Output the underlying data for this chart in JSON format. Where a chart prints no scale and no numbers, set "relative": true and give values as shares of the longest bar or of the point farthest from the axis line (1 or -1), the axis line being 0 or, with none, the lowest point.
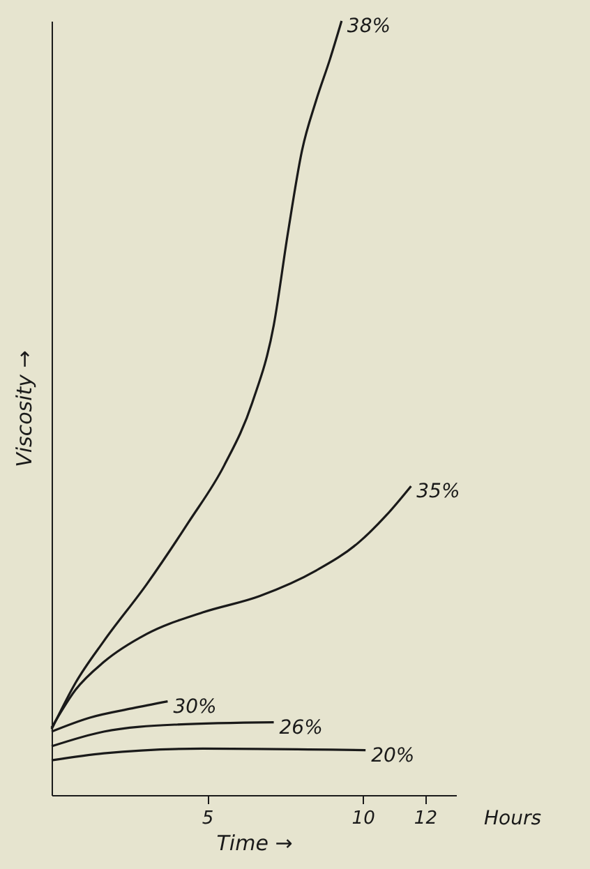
{
  "chart_data": {
    "type": "line",
    "relative": true,
    "xlabel": "Time →",
    "ylabel": "Viscosity →",
    "xlim": [
      0,
      13
    ],
    "xticks": [
      5,
      10,
      12
    ],
    "grid": false,
    "legend": false,
    "marker": "none",
    "line_style": "solid",
    "annotations": [
      "Hours"
    ],
    "series": [
      {
        "name": "38%",
        "color": "#1a1a1a",
        "x": [
          0,
          0.77,
          1.68,
          3.05,
          4.41,
          5.55,
          6.45,
          7.14,
          7.59,
          8.05,
          8.5,
          8.95,
          9.32
        ],
        "values": [
          0.085,
          0.145,
          0.199,
          0.272,
          0.353,
          0.426,
          0.507,
          0.607,
          0.725,
          0.833,
          0.897,
          0.951,
          1.0
        ]
      },
      {
        "name": "35%",
        "color": "#1a1a1a",
        "x": [
          0,
          0.77,
          1.68,
          3.05,
          4.86,
          6.68,
          8.5,
          9.86,
          10.77,
          11.55
        ],
        "values": [
          0.087,
          0.136,
          0.172,
          0.208,
          0.236,
          0.257,
          0.29,
          0.326,
          0.362,
          0.399
        ]
      },
      {
        "name": "30%",
        "color": "#1a1a1a",
        "x": [
          0,
          1.23,
          2.59,
          3.73
        ],
        "values": [
          0.082,
          0.1,
          0.112,
          0.121
        ]
      },
      {
        "name": "26%",
        "color": "#1a1a1a",
        "x": [
          0,
          1.68,
          3.95,
          7.14
        ],
        "values": [
          0.063,
          0.082,
          0.091,
          0.094
        ]
      },
      {
        "name": "20%",
        "color": "#1a1a1a",
        "x": [
          0,
          1.68,
          4.86,
          10.09
        ],
        "values": [
          0.045,
          0.054,
          0.06,
          0.058
        ]
      }
    ]
  }
}
